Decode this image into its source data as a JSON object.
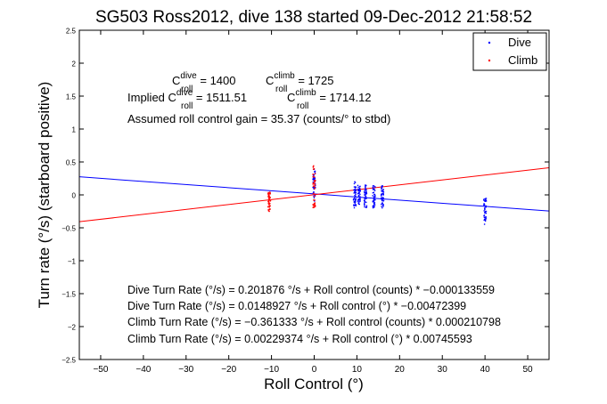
{
  "chart_data": {
    "type": "scatter",
    "title": "SG503 Ross2012, dive 138 started 09-Dec-2012 21:58:52",
    "xlabel": "Roll Control (°)",
    "ylabel": "Turn rate (°/s) (starboard positive)",
    "xlim": [
      -55,
      55
    ],
    "ylim": [
      -2.5,
      2.5
    ],
    "xticks": [
      -50,
      -40,
      -30,
      -20,
      -10,
      0,
      10,
      20,
      30,
      40,
      50
    ],
    "yticks": [
      -2.5,
      -2,
      -1.5,
      -1,
      -0.5,
      0,
      0.5,
      1,
      1.5,
      2,
      2.5
    ],
    "xtick_labels": [
      "−50",
      "−40",
      "−30",
      "−20",
      "−10",
      "0",
      "10",
      "20",
      "30",
      "40",
      "50"
    ],
    "ytick_labels": [
      "−2.5",
      "−2",
      "−1.5",
      "−1",
      "−0.5",
      "0",
      "0.5",
      "1",
      "1.5",
      "2",
      "2.5"
    ],
    "grid": false,
    "legend_position": "top-right",
    "series": [
      {
        "name": "Dive",
        "color": "#0000ff",
        "marker": "dot",
        "clusters": [
          {
            "x": 0,
            "y_range": [
              -0.1,
              0.4
            ]
          },
          {
            "x": 9.5,
            "y_range": [
              -0.2,
              0.2
            ]
          },
          {
            "x": 10.5,
            "y_range": [
              -0.15,
              0.15
            ]
          },
          {
            "x": 12,
            "y_range": [
              -0.2,
              0.15
            ]
          },
          {
            "x": 14,
            "y_range": [
              -0.2,
              0.15
            ]
          },
          {
            "x": 16,
            "y_range": [
              -0.2,
              0.15
            ]
          },
          {
            "x": 40,
            "y_range": [
              -0.45,
              -0.05
            ]
          }
        ],
        "fit": {
          "slope": -0.00472399,
          "intercept": 0.0148927
        }
      },
      {
        "name": "Climb",
        "color": "#ff0000",
        "marker": "dot",
        "clusters": [
          {
            "x": -10.5,
            "y_range": [
              -0.25,
              0.05
            ]
          },
          {
            "x": 0,
            "y_range": [
              -0.2,
              0.5
            ]
          }
        ],
        "fit": {
          "slope": 0.00745593,
          "intercept": 0.00229374
        }
      }
    ],
    "annotations": {
      "c_dive_pre": "C",
      "c_dive_sup": "dive",
      "c_dive_sub": "roll",
      "c_dive_val": " = 1400",
      "c_climb_pre": "C",
      "c_climb_sup": "climb",
      "c_climb_sub": "roll",
      "c_climb_val": " = 1725",
      "implied_prefix": "Implied C",
      "implied_dive_sup": "dive",
      "implied_dive_sub": "roll",
      "implied_dive_val": " = 1511.51",
      "implied_climb_pre": "C",
      "implied_climb_sup": "climb",
      "implied_climb_sub": "roll",
      "implied_climb_val": " = 1714.12",
      "gain": "Assumed roll control gain = 35.37 (counts/° to stbd)",
      "fits": [
        "Dive Turn Rate (°/s) = 0.201876 °/s + Roll control (counts) * −0.000133559",
        "Dive Turn Rate (°/s) = 0.0148927 °/s + Roll control (°) * −0.00472399",
        "Climb Turn Rate (°/s) = −0.361333 °/s + Roll control (counts) * 0.000210798",
        "Climb Turn Rate (°/s) = 0.00229374 °/s + Roll control (°) * 0.00745593"
      ]
    }
  }
}
